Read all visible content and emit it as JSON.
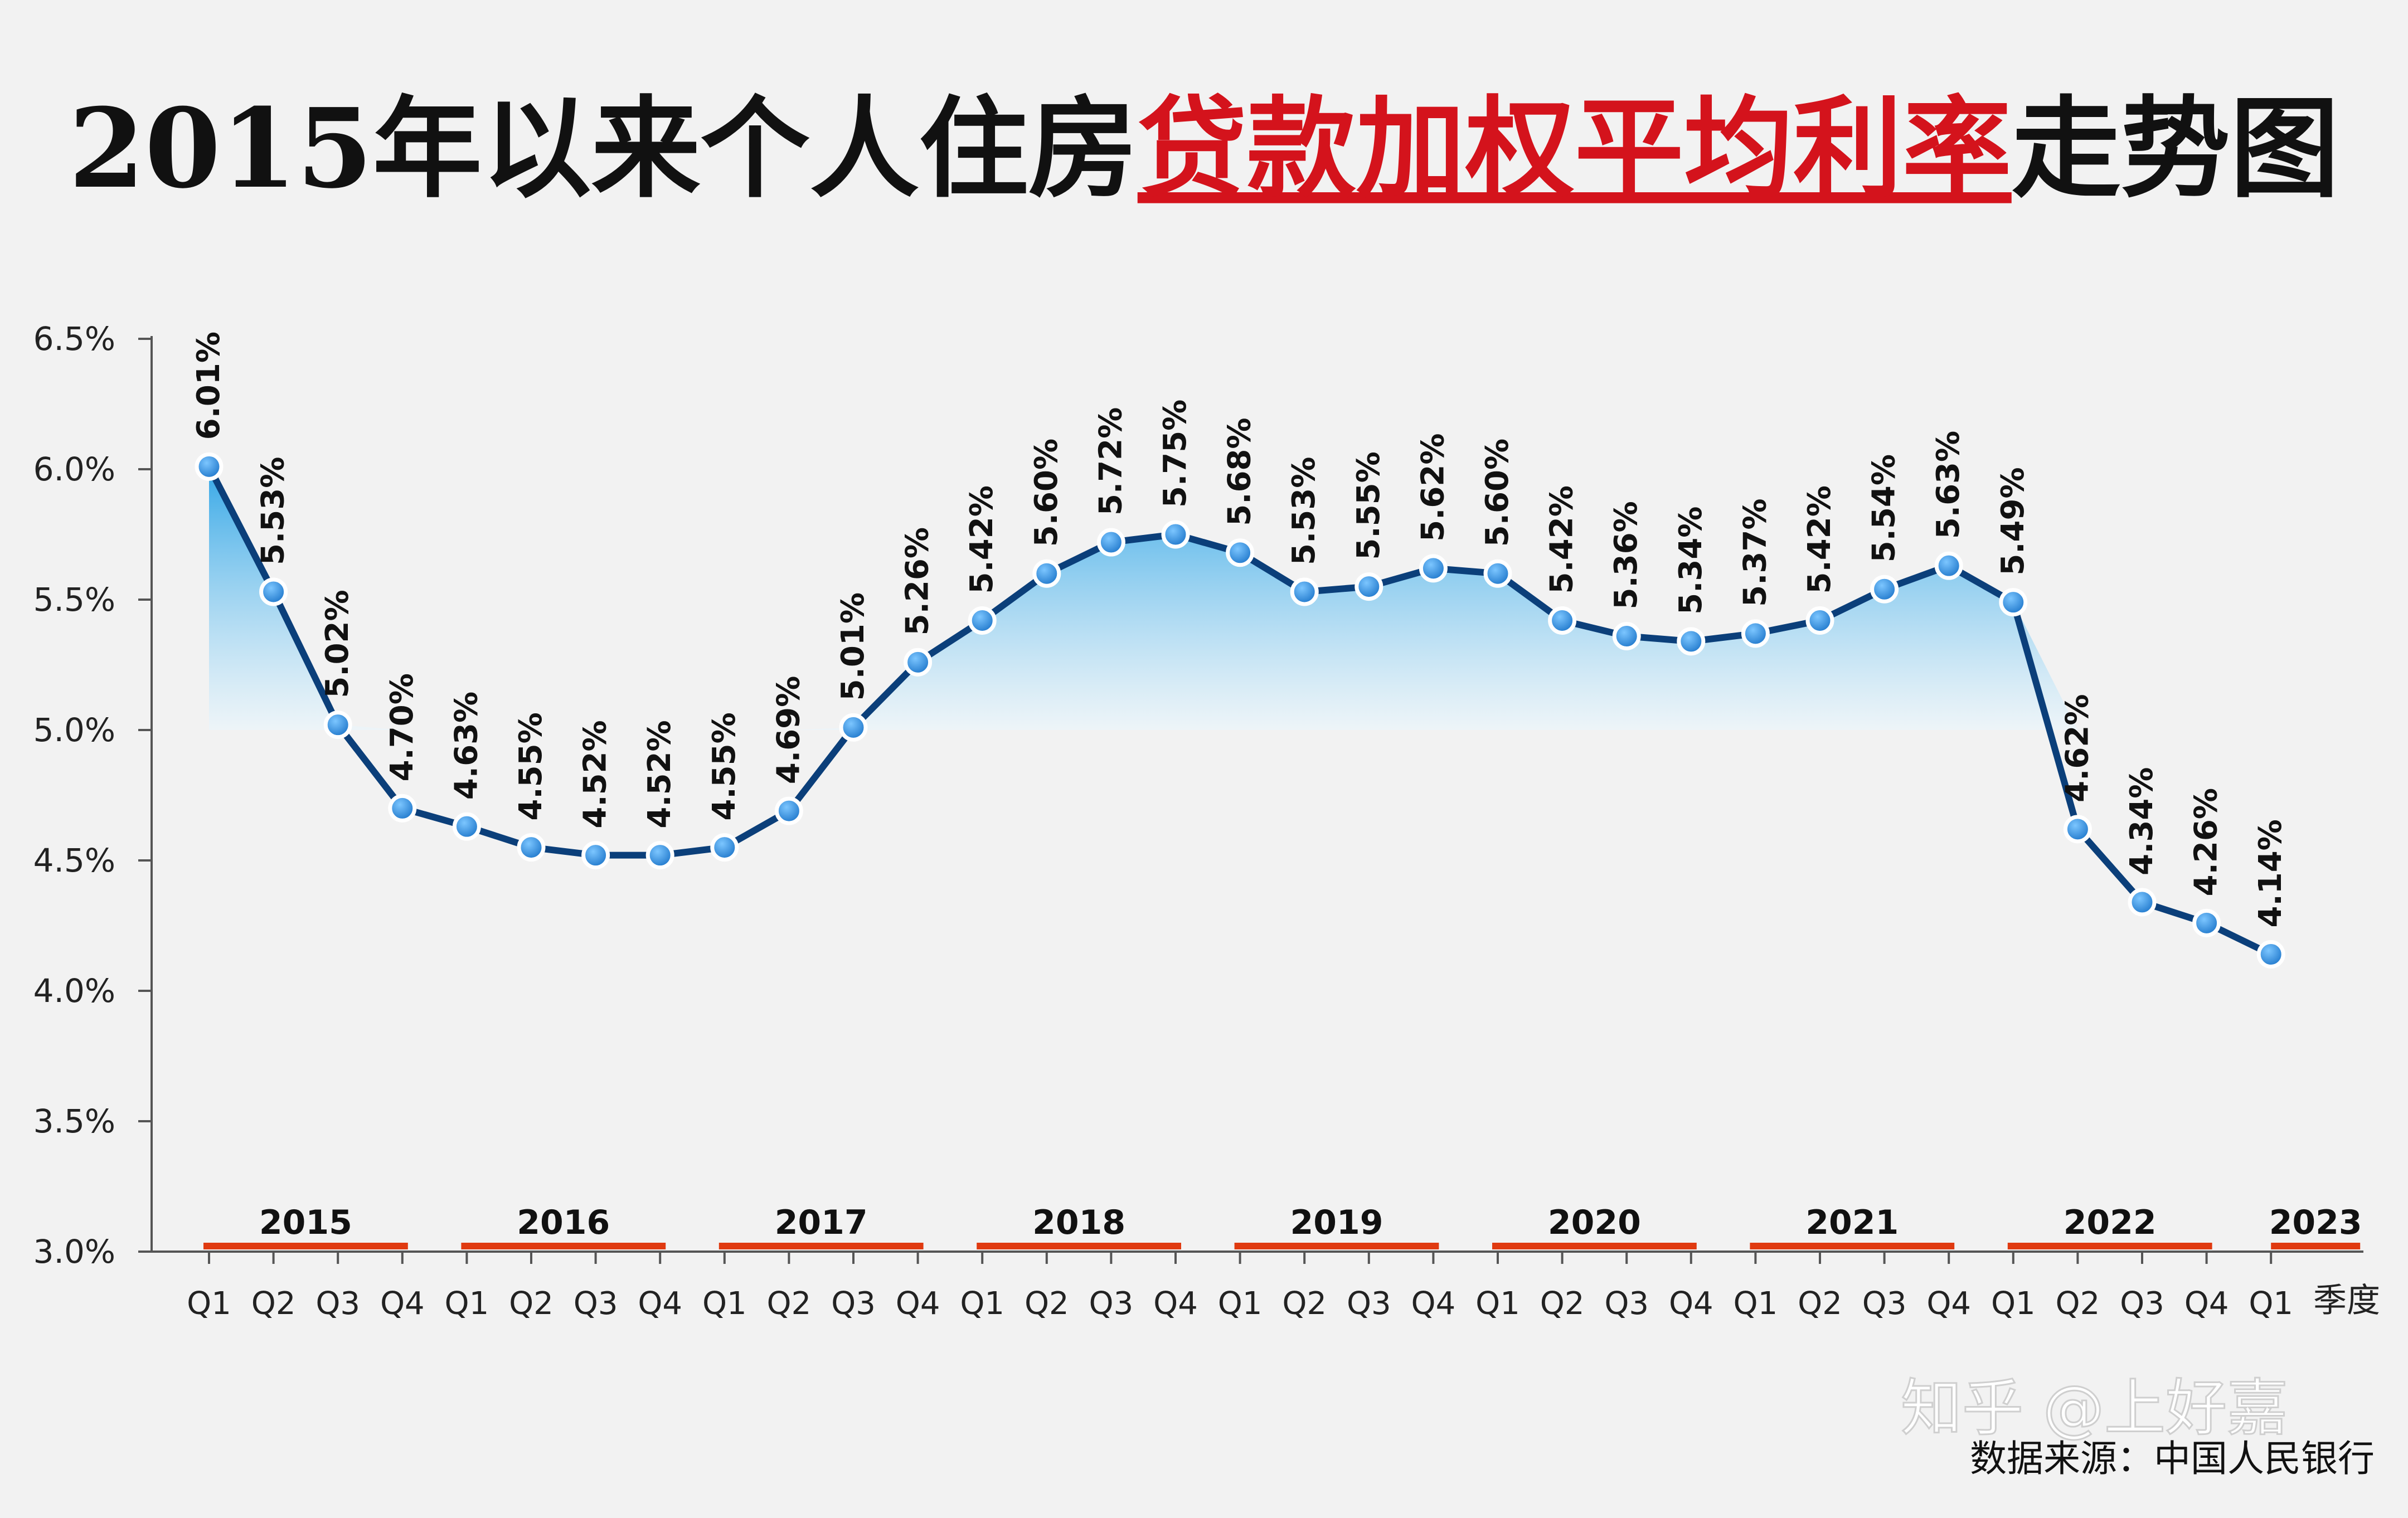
{
  "chart_data": {
    "type": "area",
    "title_parts": [
      {
        "text": "2015年以来个人住房",
        "color": "#111111"
      },
      {
        "text": "贷款加权平均利率",
        "color": "#d4131c",
        "underline": true
      },
      {
        "text": "走势图",
        "color": "#111111"
      }
    ],
    "ylim": [
      3.0,
      6.5
    ],
    "yticks": [
      "3.0%",
      "3.5%",
      "4.0%",
      "4.5%",
      "5.0%",
      "5.5%",
      "6.0%",
      "6.5%"
    ],
    "ytick_values": [
      3.0,
      3.5,
      4.0,
      4.5,
      5.0,
      5.5,
      6.0,
      6.5
    ],
    "years": [
      "2015",
      "2016",
      "2017",
      "2018",
      "2019",
      "2020",
      "2021",
      "2022",
      "2023"
    ],
    "quarters": [
      "Q1",
      "Q2",
      "Q3",
      "Q4",
      "Q1",
      "Q2",
      "Q3",
      "Q4",
      "Q1",
      "Q2",
      "Q3",
      "Q4",
      "Q1",
      "Q2",
      "Q3",
      "Q4",
      "Q1",
      "Q2",
      "Q3",
      "Q4",
      "Q1",
      "Q2",
      "Q3",
      "Q4",
      "Q1",
      "Q2",
      "Q3",
      "Q4",
      "Q1",
      "Q2",
      "Q3",
      "Q4",
      "Q1"
    ],
    "xlabel": "季度",
    "values": [
      6.01,
      5.53,
      5.02,
      4.7,
      4.63,
      4.55,
      4.52,
      4.52,
      4.55,
      4.69,
      5.01,
      5.26,
      5.42,
      5.6,
      5.72,
      5.75,
      5.68,
      5.53,
      5.55,
      5.62,
      5.6,
      5.42,
      5.36,
      5.34,
      5.37,
      5.42,
      5.54,
      5.63,
      5.49,
      4.62,
      4.34,
      4.26,
      4.14
    ],
    "labels": [
      "6.01%",
      "5.53%",
      "5.02%",
      "4.70%",
      "4.63%",
      "4.55%",
      "4.52%",
      "4.52%",
      "4.55%",
      "4.69%",
      "5.01%",
      "5.26%",
      "5.42%",
      "5.60%",
      "5.72%",
      "5.75%",
      "5.68%",
      "5.53%",
      "5.55%",
      "5.62%",
      "5.60%",
      "5.42%",
      "5.36%",
      "5.34%",
      "5.37%",
      "5.42%",
      "5.54%",
      "5.63%",
      "5.49%",
      "4.62%",
      "4.34%",
      "4.26%",
      "4.14%"
    ],
    "colors": {
      "line": "#0b3f7a",
      "marker": "#1a73c8",
      "fill_top": "#2aa3e6",
      "fill_bottom": "#eaf6fc",
      "year_bar": "#e03a10",
      "axis": "#555555"
    },
    "grid": false
  },
  "watermark": "知乎 @上好嘉",
  "source": "数据来源：中国人民银行"
}
